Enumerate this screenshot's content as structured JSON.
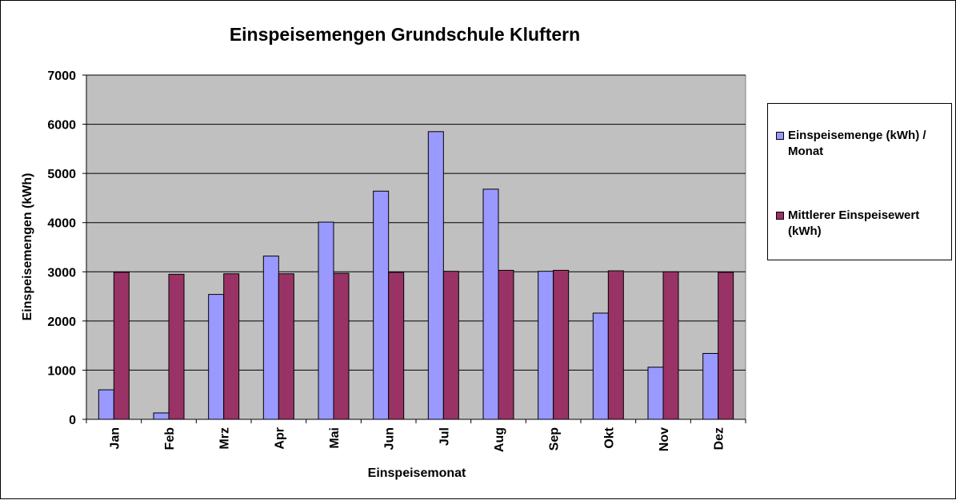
{
  "chart_data": {
    "type": "bar",
    "title": "Einspeisemengen Grundschule Kluftern",
    "xlabel": "Einspeisemonat",
    "ylabel": "Einspeisemengen (kWh)",
    "ylim": [
      0,
      7000
    ],
    "yticks": [
      "0",
      "1000",
      "2000",
      "3000",
      "4000",
      "5000",
      "6000",
      "7000"
    ],
    "categories": [
      "Jan",
      "Feb",
      "Mrz",
      "Apr",
      "Mai",
      "Jun",
      "Jul",
      "Aug",
      "Sep",
      "Okt",
      "Nov",
      "Dez"
    ],
    "grid": true,
    "legend_position": "right",
    "series": [
      {
        "name": "Einspeisemenge (kWh) / Monat",
        "color": "#9999ff",
        "values": [
          600,
          130,
          2540,
          3320,
          4010,
          4640,
          5850,
          4680,
          3010,
          2160,
          1060,
          1340
        ]
      },
      {
        "name": "Mittlerer Einspeisewert (kWh)",
        "color": "#993366",
        "values": [
          2990,
          2950,
          2960,
          2960,
          2970,
          2990,
          3010,
          3030,
          3030,
          3020,
          3000,
          2990
        ]
      }
    ]
  },
  "colors": {
    "plot_background": "#c0c0c0",
    "gridline": "#000000"
  }
}
